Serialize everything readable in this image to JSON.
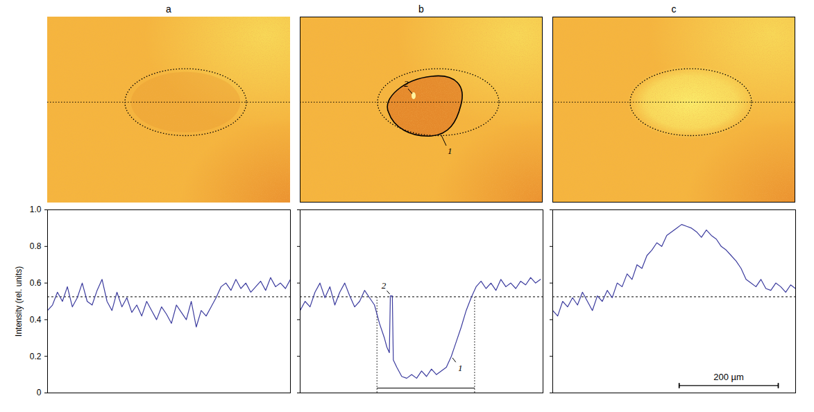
{
  "chart_data": [
    {
      "type": "line",
      "title": "a",
      "color": "#3b3b9e",
      "y_label": "Intensity (rel. units)",
      "tick_labels": "y",
      "xlim": [
        0,
        490
      ],
      "ylim": [
        0,
        1
      ],
      "yticks": [
        0,
        0.2,
        0.4,
        0.6,
        0.8,
        {
          "value": 1,
          "label": "1.0"
        }
      ],
      "reference_y": 0.525,
      "x": [
        0,
        10,
        20,
        30,
        40,
        50,
        60,
        70,
        80,
        90,
        100,
        110,
        120,
        130,
        140,
        150,
        160,
        170,
        180,
        190,
        200,
        210,
        220,
        230,
        240,
        250,
        260,
        270,
        280,
        290,
        300,
        310,
        320,
        330,
        340,
        350,
        360,
        370,
        380,
        390,
        400,
        410,
        420,
        430,
        440,
        450,
        460,
        470,
        480,
        490
      ],
      "values": [
        0.45,
        0.48,
        0.55,
        0.5,
        0.58,
        0.47,
        0.52,
        0.6,
        0.5,
        0.48,
        0.56,
        0.62,
        0.5,
        0.45,
        0.55,
        0.47,
        0.52,
        0.44,
        0.48,
        0.42,
        0.5,
        0.45,
        0.4,
        0.47,
        0.43,
        0.38,
        0.48,
        0.44,
        0.4,
        0.5,
        0.36,
        0.45,
        0.42,
        0.47,
        0.52,
        0.58,
        0.6,
        0.56,
        0.62,
        0.57,
        0.6,
        0.55,
        0.58,
        0.61,
        0.56,
        0.63,
        0.58,
        0.6,
        0.57,
        0.62
      ]
    },
    {
      "type": "line",
      "title": "b",
      "color": "#3b3b9e",
      "tick_labels": false,
      "xlim": [
        0,
        490
      ],
      "ylim": [
        0,
        1
      ],
      "yticks": [
        0,
        0.2,
        0.4,
        0.6,
        0.8,
        {
          "value": 1,
          "label": "1.0"
        }
      ],
      "reference_y": 0.525,
      "x": [
        0,
        10,
        20,
        30,
        40,
        50,
        60,
        70,
        80,
        90,
        100,
        110,
        120,
        130,
        140,
        150,
        160,
        170,
        175,
        180,
        182,
        186,
        188,
        195,
        205,
        215,
        225,
        235,
        245,
        255,
        265,
        275,
        285,
        295,
        305,
        315,
        325,
        335,
        345,
        355,
        365,
        375,
        385,
        395,
        405,
        415,
        425,
        435,
        445,
        455,
        465,
        475,
        485
      ],
      "values": [
        0.45,
        0.5,
        0.47,
        0.55,
        0.6,
        0.52,
        0.58,
        0.48,
        0.55,
        0.6,
        0.53,
        0.47,
        0.5,
        0.56,
        0.52,
        0.48,
        0.38,
        0.3,
        0.25,
        0.22,
        0.53,
        0.53,
        0.18,
        0.14,
        0.09,
        0.08,
        0.1,
        0.08,
        0.12,
        0.09,
        0.13,
        0.1,
        0.12,
        0.14,
        0.2,
        0.28,
        0.36,
        0.45,
        0.52,
        0.58,
        0.61,
        0.57,
        0.6,
        0.56,
        0.62,
        0.58,
        0.6,
        0.57,
        0.61,
        0.59,
        0.63,
        0.6,
        0.62
      ],
      "annotations": [
        {
          "label": "2",
          "x": 184,
          "y": 0.53
        },
        {
          "label": "1",
          "x": 305,
          "y": 0.2
        }
      ],
      "dip_bounds": [
        155,
        352
      ],
      "image_annotations": [
        {
          "label": "2"
        },
        {
          "label": "1"
        }
      ]
    },
    {
      "type": "line",
      "title": "c",
      "color": "#3b3b9e",
      "tick_labels": false,
      "xlim": [
        0,
        490
      ],
      "ylim": [
        0,
        1
      ],
      "yticks": [
        0,
        0.2,
        0.4,
        0.6,
        0.8,
        {
          "value": 1,
          "label": "1.0"
        }
      ],
      "reference_y": 0.525,
      "x": [
        0,
        10,
        20,
        30,
        40,
        50,
        60,
        70,
        80,
        90,
        100,
        110,
        120,
        130,
        140,
        150,
        160,
        170,
        180,
        190,
        200,
        210,
        220,
        230,
        240,
        250,
        260,
        270,
        280,
        290,
        300,
        310,
        320,
        330,
        340,
        350,
        360,
        370,
        380,
        390,
        400,
        410,
        420,
        430,
        440,
        450,
        460,
        470,
        480,
        490
      ],
      "values": [
        0.45,
        0.42,
        0.5,
        0.47,
        0.52,
        0.48,
        0.55,
        0.5,
        0.45,
        0.53,
        0.5,
        0.56,
        0.52,
        0.6,
        0.58,
        0.65,
        0.62,
        0.7,
        0.68,
        0.75,
        0.78,
        0.82,
        0.8,
        0.86,
        0.88,
        0.9,
        0.92,
        0.91,
        0.9,
        0.88,
        0.85,
        0.89,
        0.86,
        0.84,
        0.8,
        0.78,
        0.75,
        0.72,
        0.68,
        0.62,
        0.6,
        0.58,
        0.62,
        0.57,
        0.56,
        0.6,
        0.58,
        0.55,
        0.59,
        0.57
      ],
      "scale_bar": {
        "value": 200,
        "label": "200 µm",
        "x": 255,
        "y": 0.04
      }
    }
  ]
}
